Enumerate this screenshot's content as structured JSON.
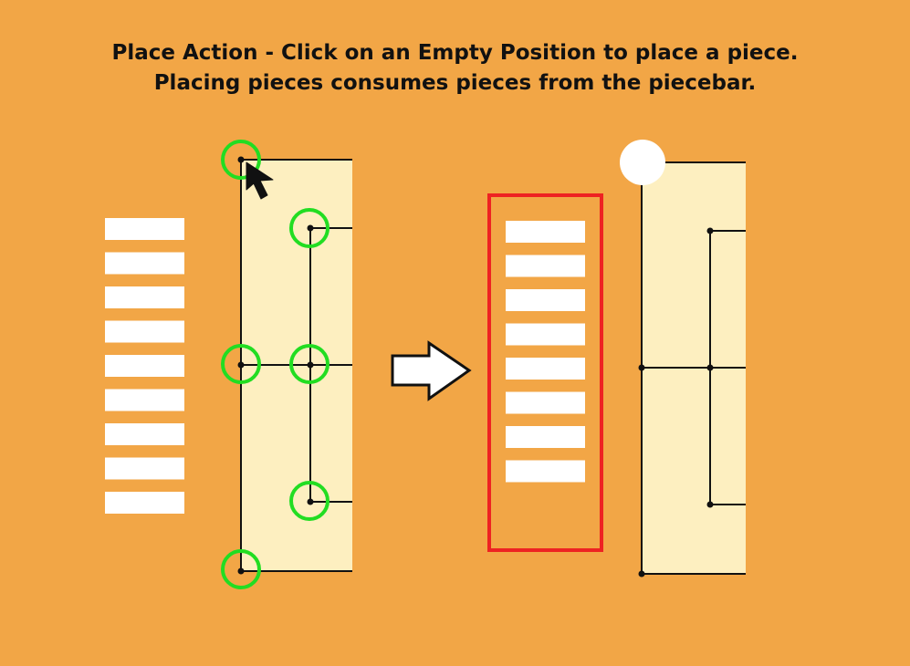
{
  "instructions": {
    "line1": "Place Action - Click on an Empty Position to place a piece.",
    "line2": "Placing pieces consumes pieces from the piecebar."
  },
  "colors": {
    "background": "#f2a646",
    "board_fill": "#fdefc0",
    "board_line": "#111111",
    "valid_position_ring": "#22dd22",
    "highlight_box": "#ee2222",
    "piece": "#ffffff"
  },
  "before": {
    "piecebar_count": 9,
    "valid_position_count": 6
  },
  "after": {
    "piecebar_count": 8,
    "placed_piece_count": 1
  },
  "icons": {
    "cursor": "mouse-pointer-icon",
    "transition": "right-arrow-icon"
  }
}
